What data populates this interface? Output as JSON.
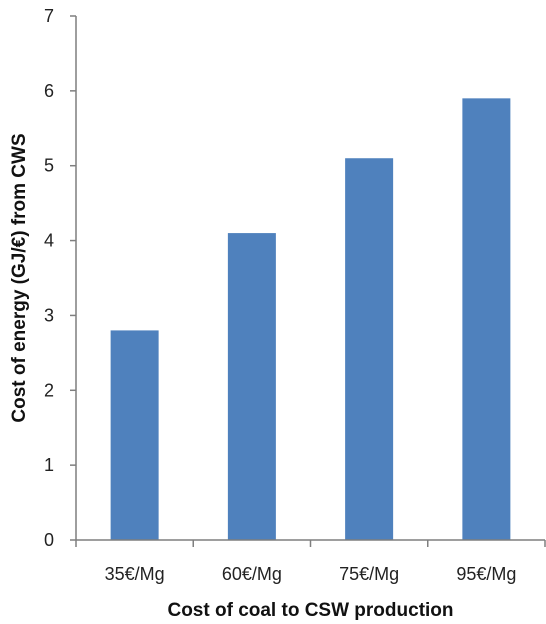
{
  "chart_data": {
    "type": "bar",
    "categories": [
      "35€/Mg",
      "60€/Mg",
      "75€/Mg",
      "95€/Mg"
    ],
    "values": [
      2.8,
      4.1,
      5.1,
      5.9
    ],
    "title": "",
    "xlabel": "Cost of coal to CSW production",
    "ylabel": "Cost of energy (GJ/€) from CWS",
    "ylim": [
      0,
      7
    ],
    "yticks": [
      0,
      1,
      2,
      3,
      4,
      5,
      6,
      7
    ],
    "grid": false,
    "legend": "none",
    "bar_color": "#4f81bd",
    "axis_color": "#7f7f7f"
  }
}
